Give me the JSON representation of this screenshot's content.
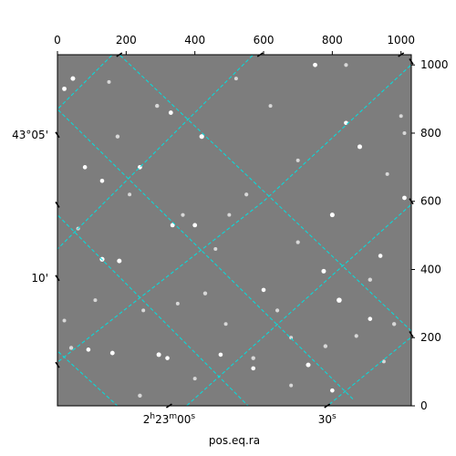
{
  "chart_data": {
    "type": "scatter",
    "title": "",
    "image": {
      "description": "grayscale astronomical field",
      "background_color": "#7d7d7d",
      "frame_color": "#000000"
    },
    "pixel_axes": {
      "x": {
        "range": [
          0,
          1030
        ],
        "ticks": [
          0,
          200,
          400,
          600,
          800,
          1000
        ],
        "tick_labels": [
          "0",
          "200",
          "400",
          "600",
          "800",
          "1000"
        ]
      },
      "y": {
        "range": [
          0,
          1030
        ],
        "ticks": [
          0,
          200,
          400,
          600,
          800,
          1000
        ],
        "tick_labels": [
          "0",
          "200",
          "400",
          "600",
          "800",
          "1000"
        ]
      }
    },
    "world_axes": {
      "xlabel": "pos.eq.ra",
      "ra_tick_labels": [
        {
          "pre": "2",
          "sup1": "h",
          "mid": "23",
          "sup2": "m",
          "post": "00",
          "sup3": "s",
          "x": 325
        },
        {
          "pre": "",
          "sup1": "",
          "mid": "",
          "sup2": "",
          "post": "30",
          "sup3": "s",
          "x": 785
        }
      ],
      "dec_tick_labels": [
        {
          "text": "43°05'",
          "y": 795
        },
        {
          "text": "10'",
          "y": 375
        }
      ]
    },
    "grid": {
      "on": true,
      "color": "#00e0e0",
      "style": "dashed",
      "lines": [
        [
          [
            170,
            1040
          ],
          [
            1040,
            210
          ]
        ],
        [
          [
            -10,
            880
          ],
          [
            860,
            20
          ]
        ],
        [
          [
            -10,
            570
          ],
          [
            560,
            -5
          ]
        ],
        [
          [
            -10,
            170
          ],
          [
            180,
            -5
          ]
        ],
        [
          [
            170,
            1040
          ],
          [
            -10,
            860
          ]
        ],
        [
          [
            580,
            1040
          ],
          [
            -10,
            450
          ]
        ],
        [
          [
            1040,
            1010
          ],
          [
            600,
            600
          ],
          [
            -10,
            120
          ]
        ],
        [
          [
            1040,
            600
          ],
          [
            370,
            -5
          ]
        ],
        [
          [
            1040,
            210
          ],
          [
            780,
            -5
          ]
        ]
      ]
    },
    "stars": [
      {
        "x": 45,
        "y": 960,
        "b": 0.95
      },
      {
        "x": 20,
        "y": 930,
        "b": 0.9
      },
      {
        "x": 330,
        "y": 860,
        "b": 0.9
      },
      {
        "x": 420,
        "y": 790,
        "b": 1.0
      },
      {
        "x": 750,
        "y": 1000,
        "b": 0.9
      },
      {
        "x": 840,
        "y": 830,
        "b": 0.85
      },
      {
        "x": 880,
        "y": 760,
        "b": 0.95
      },
      {
        "x": 175,
        "y": 790,
        "b": 0.8
      },
      {
        "x": 240,
        "y": 700,
        "b": 0.9
      },
      {
        "x": 80,
        "y": 700,
        "b": 0.85
      },
      {
        "x": 130,
        "y": 660,
        "b": 0.85
      },
      {
        "x": 290,
        "y": 880,
        "b": 0.8
      },
      {
        "x": 800,
        "y": 560,
        "b": 0.95
      },
      {
        "x": 1010,
        "y": 610,
        "b": 0.9
      },
      {
        "x": 335,
        "y": 530,
        "b": 0.9
      },
      {
        "x": 400,
        "y": 530,
        "b": 0.9
      },
      {
        "x": 365,
        "y": 560,
        "b": 0.75
      },
      {
        "x": 130,
        "y": 430,
        "b": 1.0
      },
      {
        "x": 180,
        "y": 425,
        "b": 0.95
      },
      {
        "x": 775,
        "y": 395,
        "b": 0.95
      },
      {
        "x": 820,
        "y": 310,
        "b": 1.1
      },
      {
        "x": 940,
        "y": 440,
        "b": 0.85
      },
      {
        "x": 910,
        "y": 370,
        "b": 0.8
      },
      {
        "x": 430,
        "y": 330,
        "b": 0.8
      },
      {
        "x": 600,
        "y": 340,
        "b": 0.85
      },
      {
        "x": 910,
        "y": 255,
        "b": 0.85
      },
      {
        "x": 980,
        "y": 240,
        "b": 0.8
      },
      {
        "x": 870,
        "y": 205,
        "b": 0.75
      },
      {
        "x": 40,
        "y": 170,
        "b": 0.8
      },
      {
        "x": 90,
        "y": 165,
        "b": 0.85
      },
      {
        "x": 160,
        "y": 155,
        "b": 0.9
      },
      {
        "x": 295,
        "y": 150,
        "b": 0.95
      },
      {
        "x": 320,
        "y": 140,
        "b": 0.85
      },
      {
        "x": 475,
        "y": 150,
        "b": 0.85
      },
      {
        "x": 570,
        "y": 140,
        "b": 0.8
      },
      {
        "x": 570,
        "y": 110,
        "b": 0.85
      },
      {
        "x": 730,
        "y": 120,
        "b": 0.95
      },
      {
        "x": 780,
        "y": 175,
        "b": 0.8
      },
      {
        "x": 240,
        "y": 30,
        "b": 0.8
      },
      {
        "x": 800,
        "y": 45,
        "b": 0.85
      },
      {
        "x": 1000,
        "y": 850,
        "b": 0.7
      },
      {
        "x": 550,
        "y": 620,
        "b": 0.75
      },
      {
        "x": 700,
        "y": 720,
        "b": 0.7
      },
      {
        "x": 620,
        "y": 880,
        "b": 0.7
      },
      {
        "x": 840,
        "y": 1000,
        "b": 0.75
      },
      {
        "x": 500,
        "y": 560,
        "b": 0.7
      },
      {
        "x": 210,
        "y": 620,
        "b": 0.7
      },
      {
        "x": 60,
        "y": 520,
        "b": 0.7
      },
      {
        "x": 460,
        "y": 460,
        "b": 0.7
      },
      {
        "x": 700,
        "y": 480,
        "b": 0.75
      },
      {
        "x": 640,
        "y": 280,
        "b": 0.75
      },
      {
        "x": 350,
        "y": 300,
        "b": 0.7
      },
      {
        "x": 110,
        "y": 310,
        "b": 0.7
      },
      {
        "x": 20,
        "y": 250,
        "b": 0.7
      },
      {
        "x": 490,
        "y": 240,
        "b": 0.7
      },
      {
        "x": 680,
        "y": 200,
        "b": 0.7
      },
      {
        "x": 950,
        "y": 130,
        "b": 0.7
      },
      {
        "x": 1010,
        "y": 800,
        "b": 0.7
      },
      {
        "x": 960,
        "y": 680,
        "b": 0.7
      },
      {
        "x": 150,
        "y": 950,
        "b": 0.7
      },
      {
        "x": 520,
        "y": 960,
        "b": 0.7
      },
      {
        "x": 250,
        "y": 280,
        "b": 0.7
      },
      {
        "x": 400,
        "y": 80,
        "b": 0.7
      },
      {
        "x": 680,
        "y": 60,
        "b": 0.7
      }
    ]
  }
}
